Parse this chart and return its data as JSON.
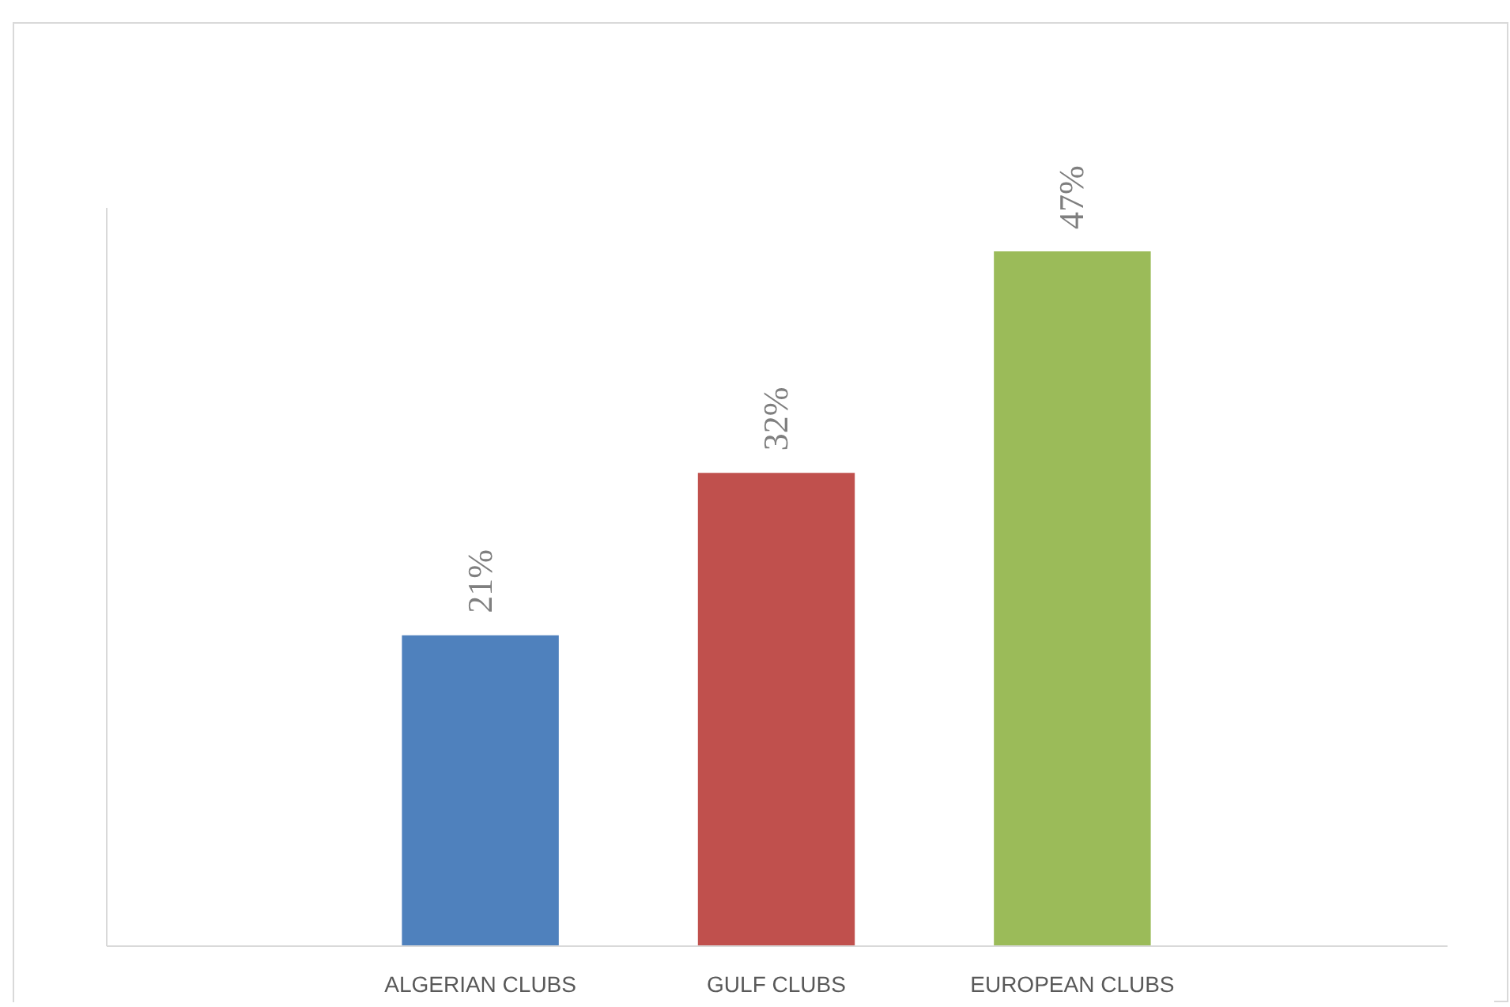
{
  "chart_data": {
    "type": "bar",
    "categories": [
      "ALGERIAN  CLUBS",
      "GULF CLUBS",
      "EUROPEAN CLUBS"
    ],
    "values": [
      21,
      32,
      47
    ],
    "colors": [
      "#4f81bd",
      "#c0504d",
      "#9bbb59"
    ],
    "value_labels": [
      "21%",
      "32%",
      "47%"
    ],
    "grid": false
  }
}
